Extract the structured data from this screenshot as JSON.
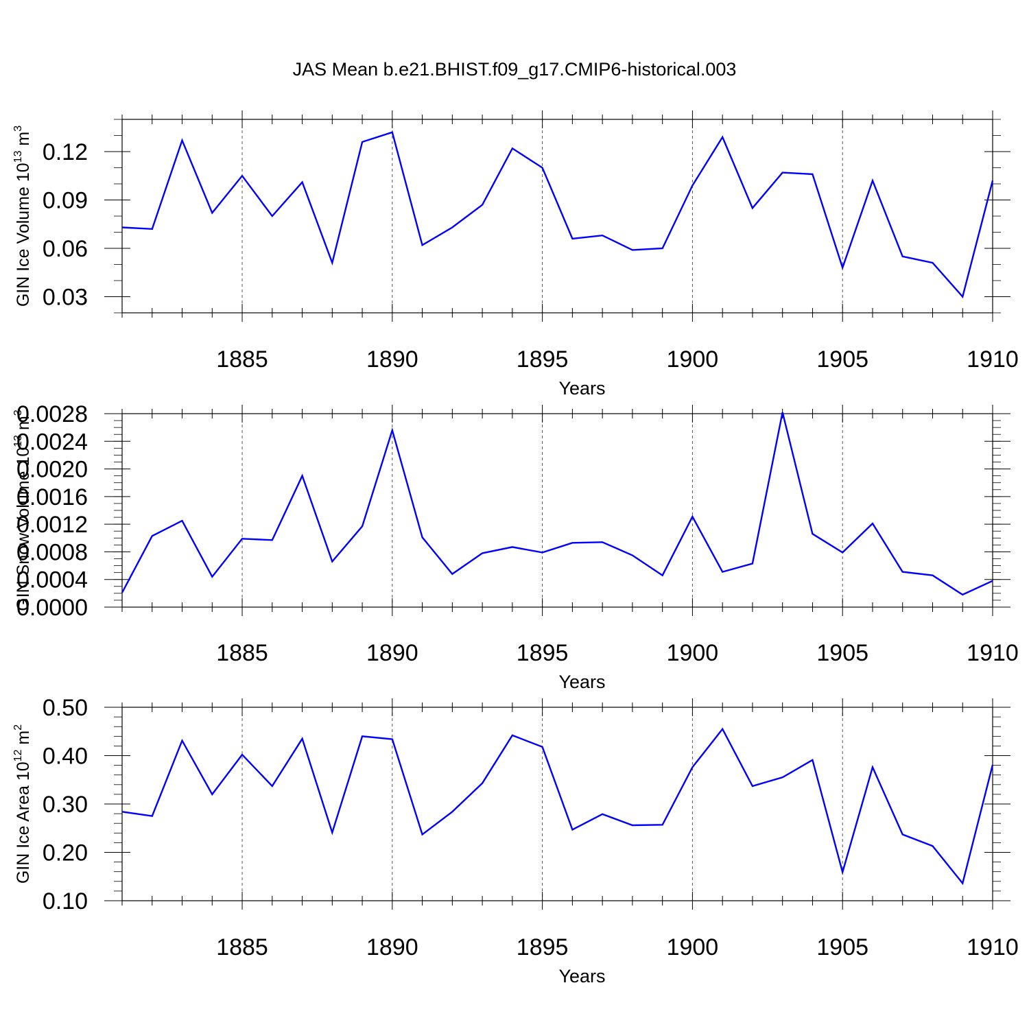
{
  "title": "JAS Mean b.e21.BHIST.f09_g17.CMIP6-historical.003",
  "chart_data": [
    {
      "type": "line",
      "title": "JAS Mean b.e21.BHIST.f09_g17.CMIP6-historical.003",
      "xlabel": "Years",
      "ylabel": {
        "base": "GIN Ice Volume 10",
        "exp": "13",
        "unit": " m",
        "unit_exp": "3"
      },
      "xlim": [
        1881,
        1910
      ],
      "ylim": [
        0.02,
        0.14
      ],
      "x_ticks": [
        1885,
        1890,
        1895,
        1900,
        1905,
        1910
      ],
      "x_tick_labels": [
        "1885",
        "1890",
        "1895",
        "1900",
        "1905",
        "1910"
      ],
      "y_ticks": [
        0.03,
        0.06,
        0.09,
        0.12
      ],
      "y_tick_labels": [
        "0.03",
        "0.06",
        "0.09",
        "0.12"
      ],
      "y_minor_step": 0.01,
      "line_color": "#0000ff",
      "series": [
        {
          "name": "GIN Ice Volume",
          "x": [
            1881,
            1882,
            1883,
            1884,
            1885,
            1886,
            1887,
            1888,
            1889,
            1890,
            1891,
            1892,
            1893,
            1894,
            1895,
            1896,
            1897,
            1898,
            1899,
            1900,
            1901,
            1902,
            1903,
            1904,
            1905,
            1906,
            1907,
            1908,
            1909,
            1910
          ],
          "values": [
            0.073,
            0.072,
            0.127,
            0.082,
            0.105,
            0.08,
            0.101,
            0.051,
            0.126,
            0.132,
            0.062,
            0.073,
            0.087,
            0.122,
            0.11,
            0.066,
            0.068,
            0.059,
            0.06,
            0.099,
            0.129,
            0.085,
            0.107,
            0.106,
            0.048,
            0.102,
            0.055,
            0.051,
            0.03,
            0.102
          ]
        }
      ]
    },
    {
      "type": "line",
      "xlabel": "Years",
      "ylabel": {
        "base": "GIN Snow Volume 10",
        "exp": "13",
        "unit": " m",
        "unit_exp": "3"
      },
      "xlim": [
        1881,
        1910
      ],
      "ylim": [
        0.0,
        0.0028
      ],
      "x_ticks": [
        1885,
        1890,
        1895,
        1900,
        1905,
        1910
      ],
      "x_tick_labels": [
        "1885",
        "1890",
        "1895",
        "1900",
        "1905",
        "1910"
      ],
      "y_ticks": [
        0.0,
        0.0004,
        0.0008,
        0.0012,
        0.0016,
        0.002,
        0.0024,
        0.0028
      ],
      "y_tick_labels": [
        "0.0000",
        "0.0004",
        "0.0008",
        "0.0012",
        "0.0016",
        "0.0020",
        "0.0024",
        "0.0028"
      ],
      "y_minor_step": 0.0001,
      "line_color": "#0000ff",
      "series": [
        {
          "name": "GIN Snow Volume",
          "x": [
            1881,
            1882,
            1883,
            1884,
            1885,
            1886,
            1887,
            1888,
            1889,
            1890,
            1891,
            1892,
            1893,
            1894,
            1895,
            1896,
            1897,
            1898,
            1899,
            1900,
            1901,
            1902,
            1903,
            1904,
            1905,
            1906,
            1907,
            1908,
            1909,
            1910
          ],
          "values": [
            0.00021,
            0.00103,
            0.00125,
            0.00044,
            0.00099,
            0.00097,
            0.0019,
            0.00066,
            0.00117,
            0.00256,
            0.00101,
            0.00048,
            0.00078,
            0.00087,
            0.00079,
            0.00093,
            0.00094,
            0.00075,
            0.00046,
            0.00131,
            0.00051,
            0.00063,
            0.00282,
            0.00106,
            0.00079,
            0.00121,
            0.00051,
            0.00046,
            0.00018,
            0.00038
          ]
        }
      ]
    },
    {
      "type": "line",
      "xlabel": "Years",
      "ylabel": {
        "base": "GIN Ice Area 10",
        "exp": "12",
        "unit": " m",
        "unit_exp": "2"
      },
      "xlim": [
        1881,
        1910
      ],
      "ylim": [
        0.1,
        0.5
      ],
      "x_ticks": [
        1885,
        1890,
        1895,
        1900,
        1905,
        1910
      ],
      "x_tick_labels": [
        "1885",
        "1890",
        "1895",
        "1900",
        "1905",
        "1910"
      ],
      "y_ticks": [
        0.1,
        0.2,
        0.3,
        0.4,
        0.5
      ],
      "y_tick_labels": [
        "0.10",
        "0.20",
        "0.30",
        "0.40",
        "0.50"
      ],
      "y_minor_step": 0.02,
      "line_color": "#0000ff",
      "series": [
        {
          "name": "GIN Ice Area",
          "x": [
            1881,
            1882,
            1883,
            1884,
            1885,
            1886,
            1887,
            1888,
            1889,
            1890,
            1891,
            1892,
            1893,
            1894,
            1895,
            1896,
            1897,
            1898,
            1899,
            1900,
            1901,
            1902,
            1903,
            1904,
            1905,
            1906,
            1907,
            1908,
            1909,
            1910
          ],
          "values": [
            0.284,
            0.275,
            0.431,
            0.32,
            0.402,
            0.337,
            0.435,
            0.241,
            0.44,
            0.434,
            0.237,
            0.284,
            0.343,
            0.442,
            0.418,
            0.247,
            0.279,
            0.256,
            0.257,
            0.376,
            0.455,
            0.337,
            0.355,
            0.391,
            0.159,
            0.376,
            0.237,
            0.213,
            0.136,
            0.381
          ]
        }
      ]
    }
  ]
}
